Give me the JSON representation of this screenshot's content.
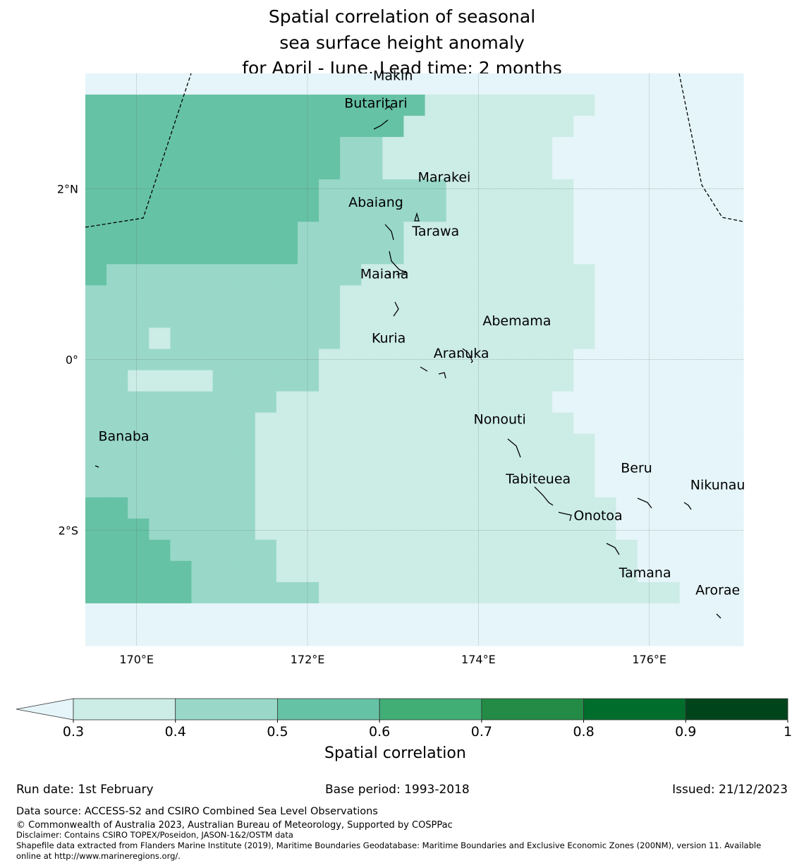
{
  "title": {
    "line1": "Spatial correlation of seasonal",
    "line2": "sea surface height anomaly",
    "line3": "for April - June. Lead time: 2 months"
  },
  "map": {
    "lon_range": [
      169.4,
      177.1
    ],
    "lat_range": [
      -3.35,
      3.35
    ],
    "x_ticks": [
      "170°E",
      "172°E",
      "174°E",
      "176°E"
    ],
    "y_ticks": [
      "2°N",
      "0°",
      "2°S"
    ],
    "places": [
      {
        "name": "Makin",
        "lon": 173.0,
        "lat": 3.27
      },
      {
        "name": "Butaritari",
        "lon": 172.8,
        "lat": 2.95
      },
      {
        "name": "Marakei",
        "lon": 173.6,
        "lat": 2.08
      },
      {
        "name": "Abaiang",
        "lon": 172.8,
        "lat": 1.79
      },
      {
        "name": "Tarawa",
        "lon": 173.5,
        "lat": 1.45
      },
      {
        "name": "Maiana",
        "lon": 172.9,
        "lat": 0.95
      },
      {
        "name": "Abemama",
        "lon": 174.45,
        "lat": 0.4
      },
      {
        "name": "Kuria",
        "lon": 172.95,
        "lat": 0.2
      },
      {
        "name": "Aranuka",
        "lon": 173.8,
        "lat": 0.02
      },
      {
        "name": "Nonouti",
        "lon": 174.25,
        "lat": -0.75
      },
      {
        "name": "Banaba",
        "lon": 169.85,
        "lat": -0.95
      },
      {
        "name": "Tabiteuea",
        "lon": 174.7,
        "lat": -1.45
      },
      {
        "name": "Beru",
        "lon": 175.85,
        "lat": -1.32
      },
      {
        "name": "Nikunau",
        "lon": 176.8,
        "lat": -1.52
      },
      {
        "name": "Onotoa",
        "lon": 175.4,
        "lat": -1.88
      },
      {
        "name": "Tamana",
        "lon": 175.95,
        "lat": -2.55
      },
      {
        "name": "Arorae",
        "lon": 176.8,
        "lat": -2.75
      }
    ],
    "colors": {
      "below_0.3": "#e5f5f9",
      "0.3-0.4": "#ccece6",
      "0.4-0.5": "#99d8c9",
      "0.5-0.6": "#66c2a4",
      "0.6-0.7": "#41ae76",
      "0.7-0.8": "#238b45",
      "0.8-0.9": "#006d2c",
      "0.9-1": "#00441b"
    }
  },
  "colorbar": {
    "ticks": [
      "0.3",
      "0.4",
      "0.5",
      "0.6",
      "0.7",
      "0.8",
      "0.9",
      "1"
    ],
    "label": "Spatial correlation"
  },
  "footer": {
    "run_date": "Run date: 1st February",
    "base_period": "Base period: 1993-2018",
    "issued": "Issued: 21/12/2023",
    "data_source": "Data source: ACCESS-S2 and CSIRO Combined Sea Level Observations",
    "copyright": "© Commonwealth of Australia 2023, Australian Bureau of Meteorology, Supported by COSPPac",
    "disclaimer": "Disclaimer: Contains CSIRO TOPEX/Poseidon, JASON-1&2/OSTM data",
    "shapefile_line1": "Shapefile data extracted from Flanders Marine Institute (2019), Maritime Boundaries Geodatabase: Maritime Boundaries and Exclusive Economic Zones (200NM), version 11. Available",
    "shapefile_line2": "online at http://www.marineregions.org/."
  }
}
